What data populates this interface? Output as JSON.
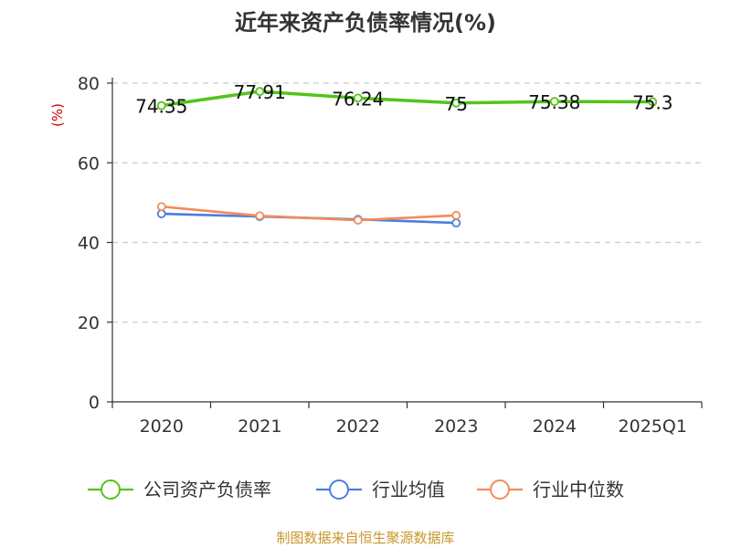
{
  "chart_data": {
    "type": "line",
    "title": "近年来资产负债率情况(%)",
    "ylabel": "(%)",
    "xlabel": "",
    "categories": [
      "2020",
      "2021",
      "2022",
      "2023",
      "2024",
      "2025Q1"
    ],
    "yticks": [
      "0",
      "20",
      "40",
      "60",
      "80"
    ],
    "ylim": [
      0,
      80
    ],
    "grid": true,
    "legend_position": "bottom",
    "series": [
      {
        "name": "公司资产负债率",
        "color": "#52c41a",
        "values": [
          74.35,
          77.91,
          76.24,
          75,
          75.38,
          75.3
        ],
        "labels": [
          "74.35",
          "77.91",
          "76.24",
          "75",
          "75.38",
          "75.3"
        ]
      },
      {
        "name": "行业均值",
        "color": "#4a7ee0",
        "values": [
          47.2,
          46.5,
          45.8,
          44.9,
          null,
          null
        ]
      },
      {
        "name": "行业中位数",
        "color": "#f28c5a",
        "values": [
          49.0,
          46.7,
          45.6,
          46.8,
          null,
          null
        ]
      }
    ]
  },
  "source_text": "制图数据来自恒生聚源数据库",
  "colors": {
    "ylabel": "#cc0000",
    "source": "#c8962b",
    "axis": "#333333",
    "grid": "#cccccc"
  }
}
